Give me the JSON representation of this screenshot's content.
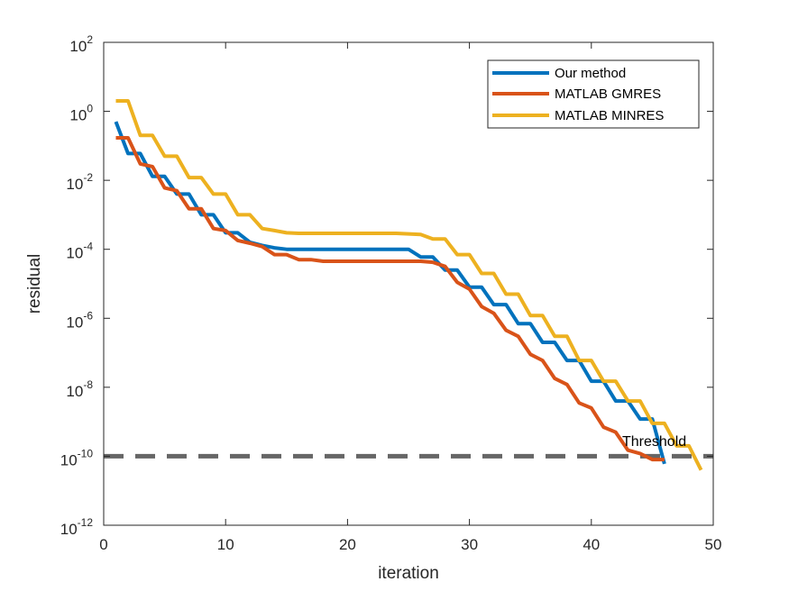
{
  "chart_data": {
    "type": "line",
    "title": "",
    "xlabel": "iteration",
    "ylabel": "residual",
    "xlim": [
      0,
      50
    ],
    "ylim": [
      1e-12,
      100
    ],
    "yscale": "log",
    "xticks": [
      0,
      10,
      20,
      30,
      40,
      50
    ],
    "xtick_labels": [
      "0",
      "10",
      "20",
      "30",
      "40",
      "50"
    ],
    "yticks": [
      1e-12,
      1e-10,
      1e-08,
      1e-06,
      0.0001,
      0.01,
      1,
      100
    ],
    "ytick_labels": [
      {
        "base": "10",
        "exp": "-12"
      },
      {
        "base": "10",
        "exp": "-10"
      },
      {
        "base": "10",
        "exp": "-8"
      },
      {
        "base": "10",
        "exp": "-6"
      },
      {
        "base": "10",
        "exp": "-4"
      },
      {
        "base": "10",
        "exp": "-2"
      },
      {
        "base": "10",
        "exp": "0"
      },
      {
        "base": "10",
        "exp": "2"
      }
    ],
    "grid": false,
    "legend_position": "top-right",
    "series": [
      {
        "name": "Our method",
        "color": "#0072BD",
        "x": [
          1,
          2,
          3,
          4,
          5,
          6,
          7,
          8,
          9,
          10,
          11,
          12,
          13,
          14,
          15,
          16,
          17,
          18,
          19,
          20,
          21,
          22,
          23,
          24,
          25,
          26,
          27,
          28,
          29,
          30,
          31,
          32,
          33,
          34,
          35,
          36,
          37,
          38,
          39,
          40,
          41,
          42,
          43,
          44,
          45,
          46
        ],
        "y": [
          0.5,
          0.06,
          0.06,
          0.013,
          0.013,
          0.004,
          0.004,
          0.001,
          0.001,
          0.0003,
          0.0003,
          0.00016,
          0.00013,
          0.00011,
          0.0001,
          0.0001,
          0.0001,
          0.0001,
          0.0001,
          0.0001,
          0.0001,
          0.0001,
          0.0001,
          0.0001,
          0.0001,
          6e-05,
          6e-05,
          2.5e-05,
          2.5e-05,
          8e-06,
          8e-06,
          2.5e-06,
          2.5e-06,
          7e-07,
          7e-07,
          2e-07,
          2e-07,
          6e-08,
          6e-08,
          1.5e-08,
          1.5e-08,
          4e-09,
          4e-09,
          1.2e-09,
          1.2e-09,
          6e-11
        ]
      },
      {
        "name": "MATLAB GMRES",
        "color": "#D95319",
        "x": [
          1,
          2,
          3,
          4,
          5,
          6,
          7,
          8,
          9,
          10,
          11,
          12,
          13,
          14,
          15,
          16,
          17,
          18,
          19,
          20,
          21,
          22,
          23,
          24,
          25,
          26,
          27,
          28,
          29,
          30,
          31,
          32,
          33,
          34,
          35,
          36,
          37,
          38,
          39,
          40,
          41,
          42,
          43,
          44,
          45,
          46
        ],
        "y": [
          0.17,
          0.17,
          0.03,
          0.025,
          0.006,
          0.005,
          0.0015,
          0.0015,
          0.0004,
          0.00035,
          0.00018,
          0.00015,
          0.00012,
          7e-05,
          7e-05,
          5e-05,
          5e-05,
          4.5e-05,
          4.5e-05,
          4.5e-05,
          4.5e-05,
          4.5e-05,
          4.5e-05,
          4.5e-05,
          4.5e-05,
          4.5e-05,
          4.2e-05,
          3.2e-05,
          1.1e-05,
          7e-06,
          2.2e-06,
          1.4e-06,
          4.5e-07,
          3e-07,
          9e-08,
          6e-08,
          1.8e-08,
          1.2e-08,
          3.5e-09,
          2.5e-09,
          7e-10,
          5e-10,
          1.5e-10,
          1.2e-10,
          8e-11,
          8e-11
        ]
      },
      {
        "name": "MATLAB MINRES",
        "color": "#EDB120",
        "x": [
          1,
          2,
          3,
          4,
          5,
          6,
          7,
          8,
          9,
          10,
          11,
          12,
          13,
          14,
          15,
          16,
          17,
          18,
          19,
          20,
          21,
          22,
          23,
          24,
          25,
          26,
          27,
          28,
          29,
          30,
          31,
          32,
          33,
          34,
          35,
          36,
          37,
          38,
          39,
          40,
          41,
          42,
          43,
          44,
          45,
          46,
          47,
          48,
          49
        ],
        "y": [
          2,
          2,
          0.2,
          0.2,
          0.05,
          0.05,
          0.012,
          0.012,
          0.004,
          0.004,
          0.001,
          0.001,
          0.0004,
          0.00035,
          0.0003,
          0.00029,
          0.00029,
          0.00029,
          0.00029,
          0.00029,
          0.00029,
          0.00029,
          0.00029,
          0.00029,
          0.00028,
          0.00027,
          0.0002,
          0.0002,
          7e-05,
          7e-05,
          2e-05,
          2e-05,
          5e-06,
          5e-06,
          1.2e-06,
          1.2e-06,
          3e-07,
          3e-07,
          6e-08,
          6e-08,
          1.5e-08,
          1.5e-08,
          4e-09,
          4e-09,
          9e-10,
          9e-10,
          2e-10,
          2e-10,
          4e-11
        ]
      }
    ],
    "threshold": {
      "label": "Threshold",
      "y": 1e-10,
      "color": "#666666",
      "style": "dashed"
    }
  }
}
